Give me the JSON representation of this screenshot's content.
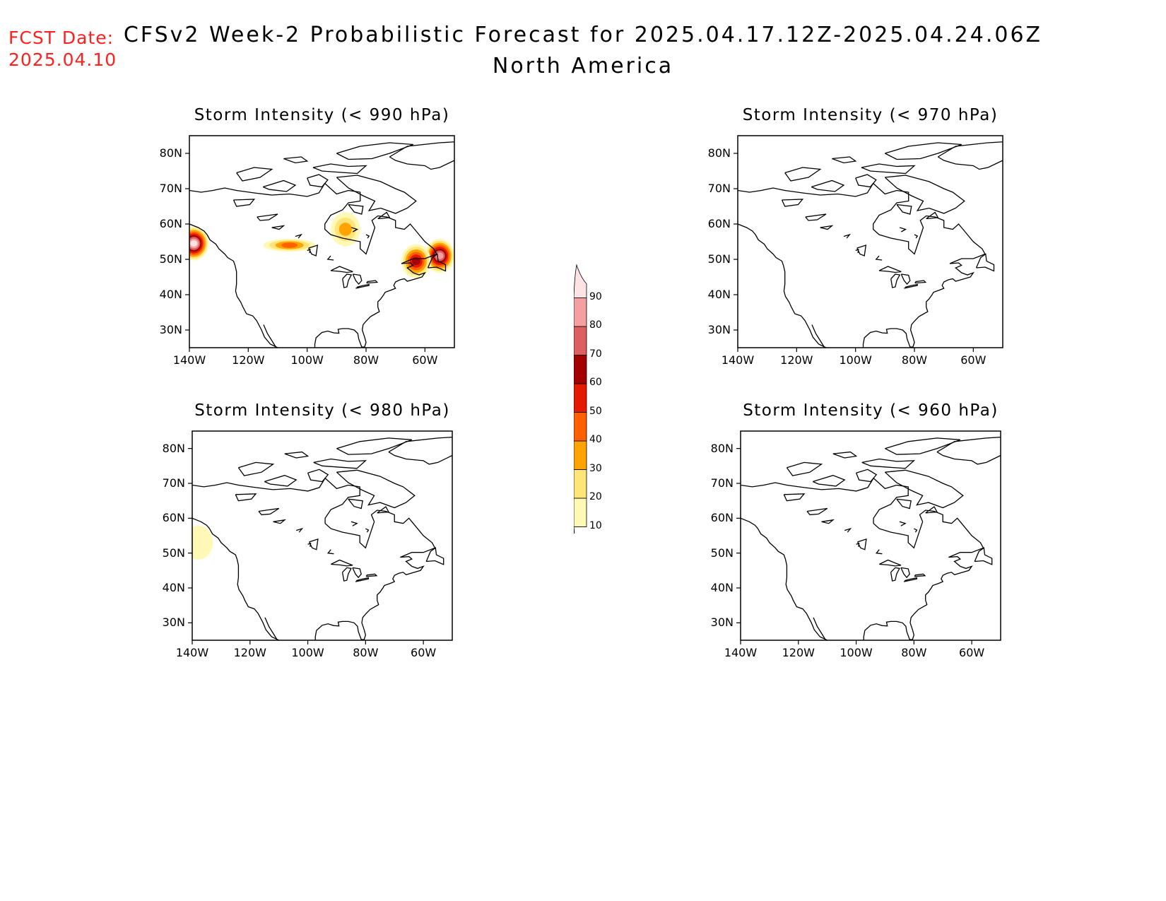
{
  "header": {
    "fcst_label": "FCST Date:",
    "fcst_date": "2025.04.10",
    "title": "CFSv2 Week-2 Probabilistic Forecast for 2025.04.17.12Z-2025.04.24.06Z",
    "subtitle": "North America"
  },
  "axes": {
    "lat_labels": [
      "80N",
      "70N",
      "60N",
      "50N",
      "40N",
      "30N"
    ],
    "lon_labels": [
      "140W",
      "120W",
      "100W",
      "80W",
      "60W"
    ]
  },
  "panels": [
    {
      "id": "p990",
      "title": "Storm Intensity (< 990 hPa)",
      "regions": [
        {
          "name": "pacific-nw",
          "lon": -138.5,
          "lat": 54.5,
          "max": 90
        },
        {
          "name": "newfoundland",
          "lon": -55,
          "lat": 51,
          "max": 80
        },
        {
          "name": "gulf-st-lawrence",
          "lon": -63,
          "lat": 49.5,
          "max": 60
        },
        {
          "name": "hudson-bay",
          "lon": -87,
          "lat": 58.5,
          "max": 30
        },
        {
          "name": "prairies",
          "lon": -106,
          "lat": 54,
          "max": 40
        }
      ]
    },
    {
      "id": "p970",
      "title": "Storm Intensity (< 970 hPa)",
      "regions": []
    },
    {
      "id": "p980",
      "title": "Storm Intensity (< 980 hPa)",
      "regions": [
        {
          "name": "pacific-nw",
          "lon": -138,
          "lat": 53,
          "max": 10
        }
      ]
    },
    {
      "id": "p960",
      "title": "Storm Intensity (< 960 hPa)",
      "regions": []
    }
  ],
  "colorbar": {
    "levels": [
      "10",
      "20",
      "30",
      "40",
      "50",
      "60",
      "70",
      "80",
      "90"
    ],
    "colors": [
      "#fff9b5",
      "#ffe478",
      "#ffa300",
      "#ff6100",
      "#e61a00",
      "#a50000",
      "#dc6060",
      "#f4a0a0",
      "#fde3e3"
    ]
  }
}
